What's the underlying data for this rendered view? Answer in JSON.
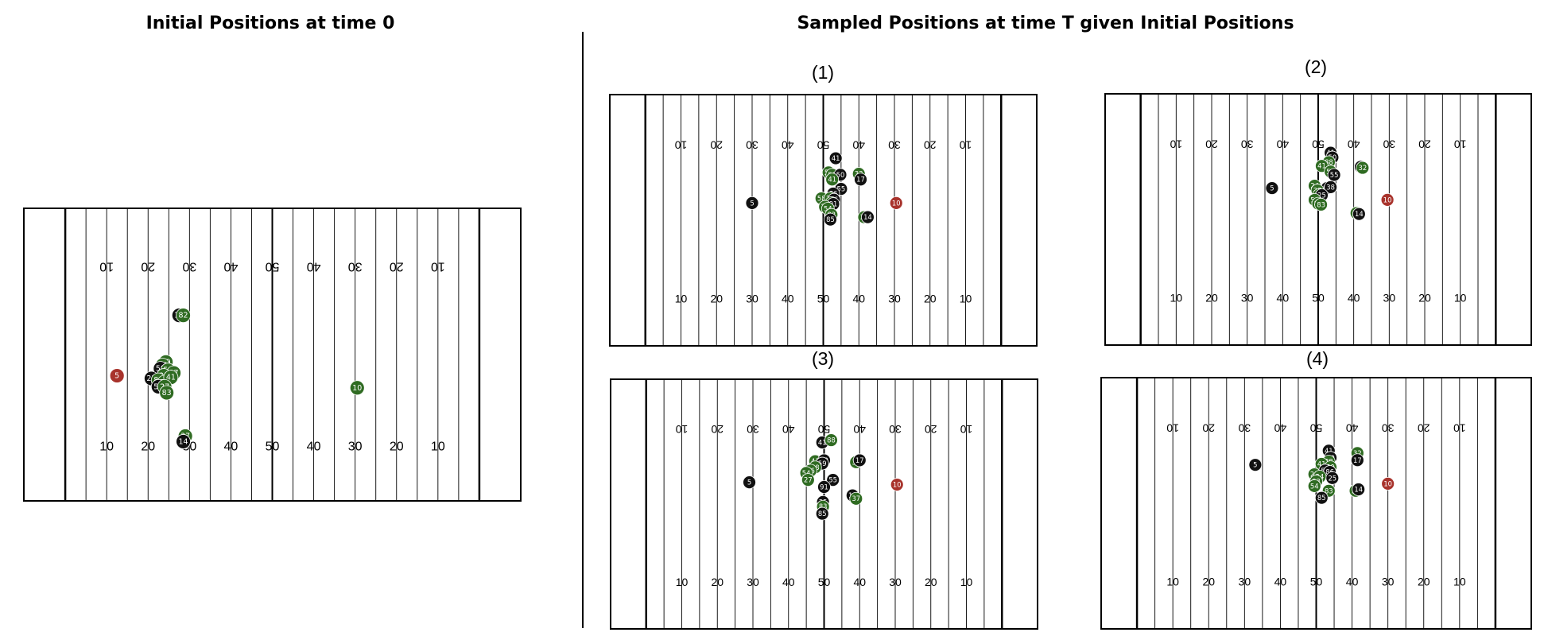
{
  "titles": {
    "left": "Initial Positions at time 0",
    "right": "Sampled Positions at time T given Initial Positions"
  },
  "colors": {
    "black": "#111111",
    "green": "#2f6b22",
    "red": "#a8332c"
  },
  "yard_labels": [
    "10",
    "20",
    "30",
    "40",
    "50",
    "40",
    "30",
    "20",
    "10"
  ],
  "fields": [
    {
      "id": "initial",
      "label": "",
      "players": [
        {
          "n": "14",
          "team": "black",
          "x": 37.5,
          "y": 19.5
        },
        {
          "n": "82",
          "team": "green",
          "x": 38.5,
          "y": 19.5
        },
        {
          "n": "5",
          "team": "red",
          "x": 22.5,
          "y": 30.5
        },
        {
          "n": "49",
          "team": "green",
          "x": 34.3,
          "y": 28.0
        },
        {
          "n": "55",
          "team": "green",
          "x": 33.5,
          "y": 28.6
        },
        {
          "n": "58",
          "team": "black",
          "x": 33.0,
          "y": 29.2
        },
        {
          "n": "59",
          "team": "green",
          "x": 34.8,
          "y": 29.5
        },
        {
          "n": "87",
          "team": "green",
          "x": 36.2,
          "y": 30.0
        },
        {
          "n": "25",
          "team": "black",
          "x": 30.8,
          "y": 31.0
        },
        {
          "n": "91",
          "team": "green",
          "x": 33.8,
          "y": 30.5
        },
        {
          "n": "86",
          "team": "green",
          "x": 32.5,
          "y": 31.3
        },
        {
          "n": "54",
          "team": "green",
          "x": 34.0,
          "y": 31.7
        },
        {
          "n": "41",
          "team": "green",
          "x": 35.5,
          "y": 30.8
        },
        {
          "n": "50",
          "team": "black",
          "x": 32.5,
          "y": 32.5
        },
        {
          "n": "27",
          "team": "green",
          "x": 34.0,
          "y": 32.5
        },
        {
          "n": "83",
          "team": "green",
          "x": 34.5,
          "y": 33.6
        },
        {
          "n": "10",
          "team": "green",
          "x": 80.5,
          "y": 32.7
        },
        {
          "n": "37",
          "team": "green",
          "x": 39.0,
          "y": 41.5
        },
        {
          "n": "14",
          "team": "black",
          "x": 38.5,
          "y": 42.5
        }
      ]
    },
    {
      "id": "sample-1",
      "label": "(1)",
      "players": [
        {
          "n": "41",
          "team": "black",
          "x": 63.5,
          "y": 13.5
        },
        {
          "n": "58",
          "team": "green",
          "x": 61.5,
          "y": 16.5
        },
        {
          "n": "59",
          "team": "green",
          "x": 62.5,
          "y": 17.0
        },
        {
          "n": "50",
          "team": "black",
          "x": 64.8,
          "y": 17.0
        },
        {
          "n": "41",
          "team": "green",
          "x": 62.5,
          "y": 18.0
        },
        {
          "n": "32",
          "team": "green",
          "x": 70.0,
          "y": 16.8
        },
        {
          "n": "17",
          "team": "black",
          "x": 70.5,
          "y": 18.0
        },
        {
          "n": "55",
          "team": "black",
          "x": 65.0,
          "y": 20.0
        },
        {
          "n": "86",
          "team": "black",
          "x": 62.8,
          "y": 21.0
        },
        {
          "n": "58",
          "team": "green",
          "x": 59.5,
          "y": 22.0
        },
        {
          "n": "24",
          "team": "green",
          "x": 62.0,
          "y": 22.0
        },
        {
          "n": "56",
          "team": "black",
          "x": 63.0,
          "y": 22.3
        },
        {
          "n": "25",
          "team": "green",
          "x": 62.3,
          "y": 23.0
        },
        {
          "n": "91",
          "team": "black",
          "x": 62.8,
          "y": 23.2
        },
        {
          "n": "27",
          "team": "green",
          "x": 60.5,
          "y": 23.8
        },
        {
          "n": "54",
          "team": "green",
          "x": 61.3,
          "y": 24.2
        },
        {
          "n": "83",
          "team": "green",
          "x": 62.3,
          "y": 25.5
        },
        {
          "n": "85",
          "team": "black",
          "x": 62.0,
          "y": 26.5
        },
        {
          "n": "37",
          "team": "green",
          "x": 71.5,
          "y": 26.0
        },
        {
          "n": "14",
          "team": "black",
          "x": 72.5,
          "y": 26.0
        },
        {
          "n": "5",
          "team": "black",
          "x": 40.0,
          "y": 23.0
        },
        {
          "n": "10",
          "team": "red",
          "x": 80.5,
          "y": 23.0
        }
      ]
    },
    {
      "id": "sample-2",
      "label": "(2)",
      "players": [
        {
          "n": "41",
          "team": "black",
          "x": 63.5,
          "y": 12.5
        },
        {
          "n": "50",
          "team": "black",
          "x": 64.0,
          "y": 13.5
        },
        {
          "n": "88",
          "team": "green",
          "x": 63.0,
          "y": 14.5
        },
        {
          "n": "41",
          "team": "green",
          "x": 61.0,
          "y": 15.3
        },
        {
          "n": "17",
          "team": "black",
          "x": 72.0,
          "y": 15.5
        },
        {
          "n": "32",
          "team": "green",
          "x": 72.5,
          "y": 15.7
        },
        {
          "n": "59",
          "team": "green",
          "x": 63.5,
          "y": 16.5
        },
        {
          "n": "55",
          "team": "black",
          "x": 64.5,
          "y": 17.2
        },
        {
          "n": "24",
          "team": "green",
          "x": 59.0,
          "y": 19.5
        },
        {
          "n": "86",
          "team": "black",
          "x": 62.5,
          "y": 20.0
        },
        {
          "n": "38",
          "team": "black",
          "x": 63.5,
          "y": 19.8
        },
        {
          "n": "27",
          "team": "green",
          "x": 59.8,
          "y": 20.5
        },
        {
          "n": "58",
          "team": "green",
          "x": 60.2,
          "y": 21.5
        },
        {
          "n": "25",
          "team": "black",
          "x": 61.0,
          "y": 21.5
        },
        {
          "n": "54",
          "team": "green",
          "x": 59.0,
          "y": 22.5
        },
        {
          "n": "85",
          "team": "green",
          "x": 60.0,
          "y": 23.3
        },
        {
          "n": "83",
          "team": "green",
          "x": 60.8,
          "y": 23.5
        },
        {
          "n": "37",
          "team": "green",
          "x": 70.8,
          "y": 25.3
        },
        {
          "n": "14",
          "team": "black",
          "x": 71.5,
          "y": 25.5
        },
        {
          "n": "5",
          "team": "black",
          "x": 47.0,
          "y": 20.0
        },
        {
          "n": "10",
          "team": "red",
          "x": 79.5,
          "y": 22.5
        }
      ]
    },
    {
      "id": "sample-3",
      "label": "(3)",
      "players": [
        {
          "n": "41",
          "team": "black",
          "x": 59.5,
          "y": 13.5
        },
        {
          "n": "88",
          "team": "green",
          "x": 62.0,
          "y": 13.0
        },
        {
          "n": "41",
          "team": "green",
          "x": 57.5,
          "y": 17.5
        },
        {
          "n": "60",
          "team": "black",
          "x": 60.0,
          "y": 17.3
        },
        {
          "n": "59",
          "team": "black",
          "x": 59.5,
          "y": 18.0
        },
        {
          "n": "32",
          "team": "green",
          "x": 69.0,
          "y": 17.7
        },
        {
          "n": "17",
          "team": "black",
          "x": 70.0,
          "y": 17.3
        },
        {
          "n": "58",
          "team": "green",
          "x": 57.5,
          "y": 18.8
        },
        {
          "n": "56",
          "team": "green",
          "x": 56.2,
          "y": 19.5
        },
        {
          "n": "54",
          "team": "green",
          "x": 55.0,
          "y": 20.0
        },
        {
          "n": "27",
          "team": "green",
          "x": 55.5,
          "y": 21.5
        },
        {
          "n": "55",
          "team": "black",
          "x": 62.5,
          "y": 21.5
        },
        {
          "n": "91",
          "team": "black",
          "x": 60.0,
          "y": 23.0
        },
        {
          "n": "14",
          "team": "black",
          "x": 68.0,
          "y": 24.8
        },
        {
          "n": "37",
          "team": "green",
          "x": 69.0,
          "y": 25.5
        },
        {
          "n": "25",
          "team": "black",
          "x": 59.7,
          "y": 26.2
        },
        {
          "n": "83",
          "team": "green",
          "x": 59.7,
          "y": 27.2
        },
        {
          "n": "85",
          "team": "black",
          "x": 59.5,
          "y": 28.7
        },
        {
          "n": "5",
          "team": "black",
          "x": 39.0,
          "y": 22.0
        },
        {
          "n": "10",
          "team": "red",
          "x": 80.5,
          "y": 22.5
        }
      ]
    },
    {
      "id": "sample-4",
      "label": "(4)",
      "players": [
        {
          "n": "41",
          "team": "black",
          "x": 63.5,
          "y": 15.5
        },
        {
          "n": "32",
          "team": "green",
          "x": 71.5,
          "y": 16.0
        },
        {
          "n": "50",
          "team": "black",
          "x": 64.0,
          "y": 17.0
        },
        {
          "n": "88",
          "team": "green",
          "x": 63.5,
          "y": 17.8
        },
        {
          "n": "41",
          "team": "green",
          "x": 61.5,
          "y": 18.3
        },
        {
          "n": "17",
          "team": "black",
          "x": 71.5,
          "y": 17.5
        },
        {
          "n": "59",
          "team": "green",
          "x": 64.0,
          "y": 19.0
        },
        {
          "n": "58",
          "team": "black",
          "x": 62.5,
          "y": 19.7
        },
        {
          "n": "86",
          "team": "black",
          "x": 63.8,
          "y": 20.0
        },
        {
          "n": "27",
          "team": "green",
          "x": 59.5,
          "y": 20.5
        },
        {
          "n": "24",
          "team": "green",
          "x": 61.0,
          "y": 21.0
        },
        {
          "n": "25",
          "team": "black",
          "x": 64.5,
          "y": 21.3
        },
        {
          "n": "83",
          "team": "green",
          "x": 60.0,
          "y": 22.0
        },
        {
          "n": "54",
          "team": "green",
          "x": 59.5,
          "y": 23.0
        },
        {
          "n": "83",
          "team": "green",
          "x": 63.5,
          "y": 24.0
        },
        {
          "n": "37",
          "team": "green",
          "x": 71.0,
          "y": 24.0
        },
        {
          "n": "14",
          "team": "black",
          "x": 71.8,
          "y": 23.7
        },
        {
          "n": "85",
          "team": "black",
          "x": 61.5,
          "y": 25.5
        },
        {
          "n": "5",
          "team": "black",
          "x": 43.0,
          "y": 18.5
        },
        {
          "n": "10",
          "team": "red",
          "x": 80.0,
          "y": 22.5
        }
      ]
    }
  ]
}
